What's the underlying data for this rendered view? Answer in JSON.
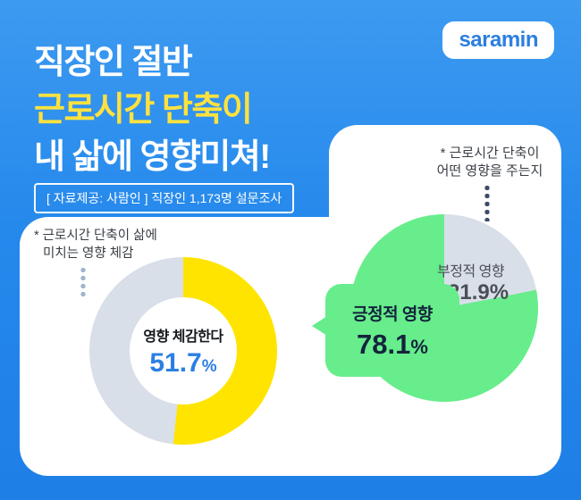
{
  "colors": {
    "background_blue_top": "#3D9AF0",
    "background_blue_bottom": "#1E7FE6",
    "title_yellow": "#FFE23E",
    "donut_yellow": "#FFE400",
    "pie_green": "#67ED8B",
    "neutral_gray": "#D9DFE8",
    "logo_blue": "#2C7FE0",
    "percent_blue": "#2B7FE4",
    "panel_white": "#FFFFFF"
  },
  "header": {
    "logo": "saramin",
    "title_line1": "직장인 절반",
    "title_line2": "근로시간 단축이",
    "title_line3": "내 삶에 영향미쳐!",
    "source_note": "[ 자료제공: 사람인 ] 직장인 1,173명 설문조사"
  },
  "donut_section": {
    "annotation_line1": "* 근로시간 단축이 삶에",
    "annotation_line2": "미치는 영향 체감",
    "center_label": "영향 체감한다",
    "center_value": "51.7",
    "unit": "%"
  },
  "pie_section": {
    "annotation_line1": "* 근로시간 단축이",
    "annotation_line2": "어떤 영향을 주는지",
    "positive_label": "긍정적 영향",
    "positive_value": "78.1",
    "negative_label": "부정적 영향",
    "negative_value": "21.9",
    "unit": "%"
  },
  "chart_data": [
    {
      "type": "pie",
      "subtype": "donut",
      "title": "근로시간 단축이 삶에 미치는 영향 체감",
      "segments": [
        {
          "label": "영향 체감한다",
          "value": 51.7,
          "color": "#FFE400"
        },
        {
          "label": "",
          "value": 48.3,
          "color": "#D9DFE8"
        }
      ]
    },
    {
      "type": "pie",
      "title": "근로시간 단축이 어떤 영향을 주는지",
      "segments": [
        {
          "label": "긍정적 영향",
          "value": 78.1,
          "color": "#67ED8B"
        },
        {
          "label": "부정적 영향",
          "value": 21.9,
          "color": "#D9DFE8"
        }
      ]
    }
  ]
}
